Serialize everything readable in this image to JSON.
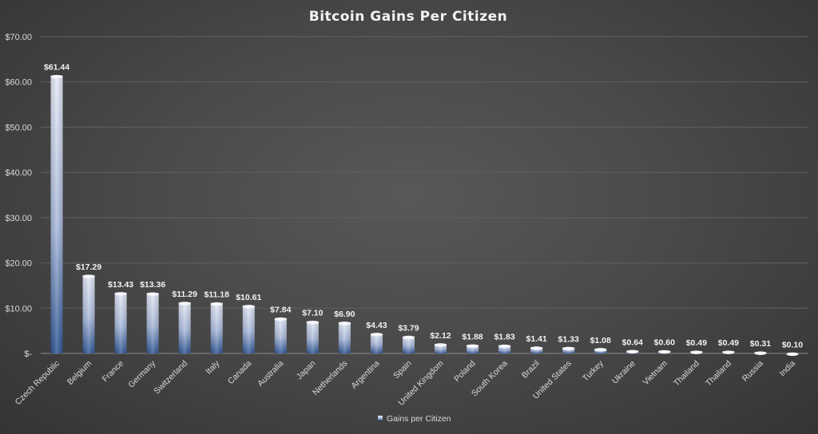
{
  "chart_data": {
    "type": "bar",
    "title": "Bitcoin Gains Per Citizen",
    "categories": [
      "Czech Republic",
      "Belgium",
      "France",
      "Germany",
      "Switzerland",
      "Italy",
      "Canada",
      "Australia",
      "Japan",
      "Netherlands",
      "Argentina",
      "Spain",
      "United Kingdom",
      "Poland",
      "South Korea",
      "Brazil",
      "United States",
      "Turkey",
      "Ukraine",
      "Vietnam",
      "Thailand",
      "Thailand",
      "Russia",
      "India"
    ],
    "series": [
      {
        "name": "Gains per Citizen",
        "values": [
          61.44,
          17.29,
          13.43,
          13.36,
          11.29,
          11.18,
          10.61,
          7.84,
          7.1,
          6.9,
          4.43,
          3.79,
          2.12,
          1.88,
          1.83,
          1.41,
          1.33,
          1.08,
          0.64,
          0.6,
          0.49,
          0.49,
          0.31,
          0.1
        ],
        "labels": [
          "$61.44",
          "$17.29",
          "$13.43",
          "$13.36",
          "$11.29",
          "$11.18",
          "$10.61",
          "$7.84",
          "$7.10",
          "$6.90",
          "$4.43",
          "$3.79",
          "$2.12",
          "$1.88",
          "$1.83",
          "$1.41",
          "$1.33",
          "$1.08",
          "$0.64",
          "$0.60",
          "$0.49",
          "$0.49",
          "$0.31",
          "$0.10"
        ]
      }
    ],
    "ylim": [
      0,
      70
    ],
    "yticks": [
      {
        "value": 0,
        "label": "$-"
      },
      {
        "value": 10,
        "label": "$10.00"
      },
      {
        "value": 20,
        "label": "$20.00"
      },
      {
        "value": 30,
        "label": "$30.00"
      },
      {
        "value": 40,
        "label": "$40.00"
      },
      {
        "value": 50,
        "label": "$50.00"
      },
      {
        "value": 60,
        "label": "$60.00"
      },
      {
        "value": 70,
        "label": "$70.00"
      }
    ],
    "grid": true,
    "legend_position": "bottom",
    "colors": {
      "bar_top": "#dce3f3",
      "bar_bottom": "#2d5593",
      "text": "#d9d9d9"
    }
  }
}
